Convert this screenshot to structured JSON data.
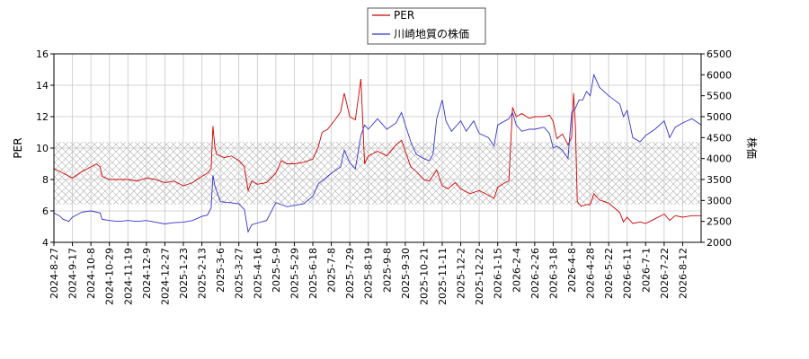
{
  "chart_data": {
    "type": "line",
    "xlabel": "",
    "ylabel": "PER",
    "y2label": "株価",
    "ylim": [
      4,
      16
    ],
    "y2lim": [
      2000,
      6500
    ],
    "yticks": [
      4,
      6,
      8,
      10,
      12,
      14,
      16
    ],
    "y2ticks": [
      2000,
      2500,
      3000,
      3500,
      4000,
      4500,
      5000,
      5500,
      6000,
      6500
    ],
    "band": [
      6.4,
      10.4
    ],
    "grid": true,
    "legend_position": "top-center",
    "x_ticks": [
      "2024-8-27",
      "2024-9-17",
      "2024-10-8",
      "2024-10-29",
      "2024-11-19",
      "2024-12-9",
      "2024-12-27",
      "2025-1-23",
      "2025-2-13",
      "2025-3-6",
      "2025-3-27",
      "2025-4-16",
      "2025-5-9",
      "2025-5-29",
      "2025-6-18",
      "2025-7-8",
      "2025-7-29",
      "2025-8-19",
      "2025-9-8",
      "2025-9-30",
      "2025-10-21",
      "2025-11-11",
      "2025-12-2",
      "2025-12-22",
      "2026-1-15",
      "2026-2-4",
      "2026-2-26",
      "2026-3-18",
      "2026-4-8",
      "2026-4-28",
      "2026-5-22",
      "2026-6-11",
      "2026-7-1",
      "2026-7-22",
      "2026-8-12"
    ],
    "series": [
      {
        "name": "PER",
        "axis": "left",
        "color": "#cc0000",
        "points": [
          [
            0,
            8.7
          ],
          [
            0.5,
            8.4
          ],
          [
            1,
            8.1
          ],
          [
            1.5,
            8.5
          ],
          [
            2,
            8.8
          ],
          [
            2.3,
            9.0
          ],
          [
            2.5,
            8.8
          ],
          [
            2.6,
            8.2
          ],
          [
            3,
            8.0
          ],
          [
            3.5,
            8.0
          ],
          [
            4,
            8.0
          ],
          [
            4.5,
            7.9
          ],
          [
            5,
            8.1
          ],
          [
            5.5,
            8.0
          ],
          [
            6,
            7.8
          ],
          [
            6.5,
            7.9
          ],
          [
            7,
            7.6
          ],
          [
            7.5,
            7.8
          ],
          [
            8,
            8.2
          ],
          [
            8.3,
            8.4
          ],
          [
            8.5,
            8.7
          ],
          [
            8.6,
            11.4
          ],
          [
            8.7,
            10.1
          ],
          [
            8.8,
            9.6
          ],
          [
            9.2,
            9.4
          ],
          [
            9.6,
            9.5
          ],
          [
            10,
            9.2
          ],
          [
            10.3,
            8.8
          ],
          [
            10.5,
            7.3
          ],
          [
            10.7,
            7.9
          ],
          [
            11,
            7.7
          ],
          [
            11.5,
            7.8
          ],
          [
            12,
            8.4
          ],
          [
            12.3,
            9.2
          ],
          [
            12.6,
            9.0
          ],
          [
            13,
            9.0
          ],
          [
            13.5,
            9.1
          ],
          [
            14,
            9.3
          ],
          [
            14.3,
            10.1
          ],
          [
            14.5,
            11.0
          ],
          [
            14.8,
            11.2
          ],
          [
            15.2,
            11.8
          ],
          [
            15.5,
            12.3
          ],
          [
            15.7,
            13.5
          ],
          [
            16,
            12.0
          ],
          [
            16.3,
            11.8
          ],
          [
            16.6,
            14.4
          ],
          [
            16.8,
            9.0
          ],
          [
            17,
            9.5
          ],
          [
            17.5,
            9.8
          ],
          [
            18,
            9.5
          ],
          [
            18.5,
            10.2
          ],
          [
            18.8,
            10.5
          ],
          [
            19,
            9.8
          ],
          [
            19.3,
            8.8
          ],
          [
            19.6,
            8.5
          ],
          [
            20,
            8.0
          ],
          [
            20.3,
            7.9
          ],
          [
            20.7,
            8.6
          ],
          [
            21,
            7.6
          ],
          [
            21.3,
            7.4
          ],
          [
            21.7,
            7.8
          ],
          [
            22,
            7.4
          ],
          [
            22.5,
            7.1
          ],
          [
            23,
            7.3
          ],
          [
            23.5,
            7.0
          ],
          [
            23.8,
            6.8
          ],
          [
            24,
            7.5
          ],
          [
            24.4,
            7.8
          ],
          [
            24.6,
            7.9
          ],
          [
            24.8,
            12.6
          ],
          [
            25,
            12.0
          ],
          [
            25.3,
            12.2
          ],
          [
            25.7,
            11.9
          ],
          [
            26,
            12.0
          ],
          [
            26.5,
            12.0
          ],
          [
            26.8,
            12.1
          ],
          [
            27,
            11.7
          ],
          [
            27.2,
            10.6
          ],
          [
            27.5,
            10.9
          ],
          [
            27.8,
            10.2
          ],
          [
            28,
            10.7
          ],
          [
            28.1,
            13.5
          ],
          [
            28.2,
            11.5
          ],
          [
            28.3,
            6.6
          ],
          [
            28.5,
            6.3
          ],
          [
            28.8,
            6.4
          ],
          [
            29,
            6.4
          ],
          [
            29.2,
            7.1
          ],
          [
            29.5,
            6.7
          ],
          [
            30,
            6.5
          ],
          [
            30.3,
            6.2
          ],
          [
            30.6,
            5.9
          ],
          [
            30.8,
            5.3
          ],
          [
            31,
            5.6
          ],
          [
            31.3,
            5.2
          ],
          [
            31.7,
            5.3
          ],
          [
            32,
            5.2
          ],
          [
            32.5,
            5.5
          ],
          [
            33,
            5.8
          ],
          [
            33.3,
            5.4
          ],
          [
            33.6,
            5.7
          ],
          [
            34,
            5.6
          ],
          [
            34.5,
            5.7
          ],
          [
            35,
            5.7
          ]
        ]
      },
      {
        "name": "川崎地質の株価",
        "axis": "right",
        "color": "#3333cc",
        "points": [
          [
            0,
            2700
          ],
          [
            0.3,
            2630
          ],
          [
            0.5,
            2550
          ],
          [
            0.8,
            2500
          ],
          [
            1,
            2600
          ],
          [
            1.5,
            2720
          ],
          [
            2,
            2750
          ],
          [
            2.5,
            2700
          ],
          [
            2.6,
            2550
          ],
          [
            3,
            2520
          ],
          [
            3.5,
            2500
          ],
          [
            4,
            2520
          ],
          [
            4.5,
            2500
          ],
          [
            5,
            2520
          ],
          [
            5.5,
            2480
          ],
          [
            6,
            2440
          ],
          [
            6.5,
            2470
          ],
          [
            7,
            2480
          ],
          [
            7.5,
            2520
          ],
          [
            8,
            2620
          ],
          [
            8.3,
            2650
          ],
          [
            8.5,
            2820
          ],
          [
            8.6,
            3600
          ],
          [
            8.7,
            3350
          ],
          [
            9,
            2970
          ],
          [
            9.5,
            2950
          ],
          [
            10,
            2920
          ],
          [
            10.3,
            2780
          ],
          [
            10.5,
            2250
          ],
          [
            10.7,
            2420
          ],
          [
            11,
            2460
          ],
          [
            11.5,
            2520
          ],
          [
            12,
            2950
          ],
          [
            12.3,
            2900
          ],
          [
            12.6,
            2850
          ],
          [
            13,
            2880
          ],
          [
            13.5,
            2920
          ],
          [
            14,
            3100
          ],
          [
            14.3,
            3400
          ],
          [
            14.6,
            3500
          ],
          [
            15,
            3650
          ],
          [
            15.5,
            3800
          ],
          [
            15.7,
            4200
          ],
          [
            16,
            3900
          ],
          [
            16.3,
            3750
          ],
          [
            16.6,
            4550
          ],
          [
            16.8,
            4800
          ],
          [
            17,
            4700
          ],
          [
            17.5,
            4950
          ],
          [
            18,
            4700
          ],
          [
            18.5,
            4850
          ],
          [
            18.8,
            5100
          ],
          [
            19,
            4800
          ],
          [
            19.3,
            4400
          ],
          [
            19.6,
            4100
          ],
          [
            20,
            4000
          ],
          [
            20.3,
            3950
          ],
          [
            20.5,
            4100
          ],
          [
            20.7,
            4950
          ],
          [
            21,
            5400
          ],
          [
            21.2,
            4900
          ],
          [
            21.5,
            4650
          ],
          [
            22,
            4900
          ],
          [
            22.3,
            4650
          ],
          [
            22.7,
            4900
          ],
          [
            23,
            4600
          ],
          [
            23.5,
            4500
          ],
          [
            23.8,
            4300
          ],
          [
            24,
            4800
          ],
          [
            24.4,
            4900
          ],
          [
            24.6,
            4950
          ],
          [
            24.8,
            5100
          ],
          [
            25,
            4800
          ],
          [
            25.3,
            4650
          ],
          [
            25.7,
            4700
          ],
          [
            26,
            4700
          ],
          [
            26.5,
            4750
          ],
          [
            26.8,
            4600
          ],
          [
            27,
            4250
          ],
          [
            27.2,
            4300
          ],
          [
            27.5,
            4200
          ],
          [
            27.8,
            4000
          ],
          [
            28,
            5100
          ],
          [
            28.2,
            5200
          ],
          [
            28.4,
            5400
          ],
          [
            28.6,
            5400
          ],
          [
            28.8,
            5600
          ],
          [
            29,
            5500
          ],
          [
            29.2,
            6000
          ],
          [
            29.5,
            5700
          ],
          [
            30,
            5500
          ],
          [
            30.3,
            5400
          ],
          [
            30.6,
            5300
          ],
          [
            30.8,
            5000
          ],
          [
            31,
            5150
          ],
          [
            31.3,
            4500
          ],
          [
            31.7,
            4400
          ],
          [
            32,
            4550
          ],
          [
            32.5,
            4700
          ],
          [
            33,
            4900
          ],
          [
            33.3,
            4500
          ],
          [
            33.6,
            4750
          ],
          [
            34,
            4850
          ],
          [
            34.5,
            4950
          ],
          [
            35,
            4800
          ]
        ]
      }
    ]
  }
}
